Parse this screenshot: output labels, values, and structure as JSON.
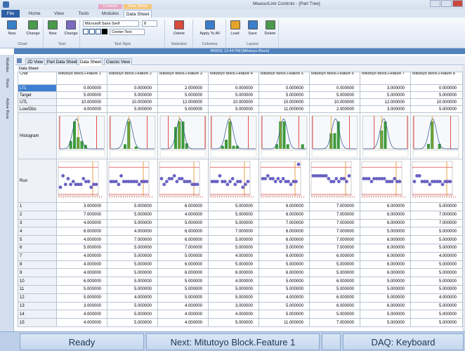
{
  "window": {
    "title": "MeasurLink Controls - [Part Tree]"
  },
  "ribbon": {
    "context_tabs": [
      "Controls",
      "Data Sheet"
    ],
    "tabs": [
      "File",
      "Home",
      "View",
      "Tools",
      "Modules",
      "Data Sheet"
    ],
    "groups": [
      {
        "label": "Chart",
        "buttons": [
          "New",
          "Change"
        ]
      },
      {
        "label": "Text",
        "buttons": [
          "New",
          "Change"
        ]
      },
      {
        "label": "Text Style",
        "font": "Microsoft Sans Serif",
        "size": "8",
        "align": "Center-Text"
      },
      {
        "label": "Selection",
        "buttons": [
          "Delete"
        ]
      },
      {
        "label": "Columns",
        "buttons": [
          "Apply To All"
        ]
      },
      {
        "label": "Layout",
        "buttons": [
          "Load",
          "Save",
          "Delete"
        ]
      }
    ]
  },
  "info_bar": "400001 12:44 PM [Mitutoyo Block]",
  "side_tabs": [
    "Modules",
    "Runs",
    "Active Runs"
  ],
  "view_tabs": [
    "2D View",
    "Part Data Sheet",
    "Data Sheet",
    "Classic View"
  ],
  "sheet_label": "Data Sheet",
  "table": {
    "header": [
      "Char",
      "Mitutoyo Block.Feature 1",
      "Mitutoyo Block.Feature 2",
      "Mitutoyo Block.Feature 3",
      "Mitutoyo Block.Feature 4",
      "Mitutoyo Block.Feature 5",
      "Mitutoyo Block.Feature 6",
      "Mitutoyo Block.Feature 7",
      "Mitutoyo Block.Feature 8"
    ],
    "spec_rows": [
      [
        "LTL",
        "0.000000",
        "0.000000",
        "2.000000",
        "0.000000",
        "0.000000",
        "0.000000",
        "3.000000",
        "0.000000"
      ],
      [
        "Target",
        "5.000000",
        "5.000000",
        "5.000000",
        "5.000000",
        "5.000000",
        "5.000000",
        "5.000000",
        "5.000000"
      ],
      [
        "UTL",
        "10.000000",
        "10.000000",
        "12.000000",
        "10.000000",
        "10.000000",
        "10.000000",
        "12.000000",
        "10.000000"
      ],
      [
        "Low/Obs",
        "4.000000",
        "5.000000",
        "5.000000",
        "5.000000",
        "11.000000",
        "2.000000",
        "3.000000",
        "5.000000"
      ]
    ],
    "chart_rows": [
      "Histogram",
      "Run"
    ],
    "rows": [
      [
        "1",
        "3.000000",
        "5.000000",
        "6.000000",
        "5.000000",
        "6.000000",
        "7.000000",
        "6.000000",
        "5.000000"
      ],
      [
        "2",
        "7.000000",
        "5.000000",
        "4.000000",
        "5.000000",
        "6.000000",
        "7.000000",
        "6.000000",
        "7.000000"
      ],
      [
        "3",
        "4.000000",
        "5.000000",
        "5.000000",
        "5.000000",
        "7.000000",
        "7.000000",
        "6.000000",
        "7.000000"
      ],
      [
        "4",
        "6.000000",
        "4.000000",
        "6.000000",
        "7.000000",
        "6.000000",
        "7.000000",
        "5.000000",
        "5.000000"
      ],
      [
        "5",
        "4.000000",
        "7.000000",
        "6.000000",
        "5.000000",
        "6.000000",
        "7.000000",
        "6.000000",
        "5.000000"
      ],
      [
        "6",
        "5.000000",
        "5.000000",
        "7.000000",
        "5.000000",
        "5.000000",
        "7.000000",
        "6.000000",
        "5.000000"
      ],
      [
        "7",
        "4.000000",
        "5.000000",
        "5.000000",
        "4.000000",
        "6.000000",
        "6.000000",
        "6.000000",
        "4.000000"
      ],
      [
        "8",
        "4.000000",
        "5.000000",
        "6.000000",
        "5.000000",
        "5.000000",
        "5.000000",
        "6.000000",
        "5.000000"
      ],
      [
        "9",
        "4.000000",
        "5.000000",
        "6.000000",
        "6.000000",
        "6.000000",
        "5.000000",
        "6.000000",
        "5.000000"
      ],
      [
        "10",
        "6.000000",
        "5.000000",
        "5.000000",
        "4.000000",
        "5.000000",
        "6.000000",
        "5.000000",
        "5.000000"
      ],
      [
        "11",
        "5.000000",
        "5.000000",
        "5.000000",
        "5.000000",
        "5.000000",
        "5.000000",
        "5.000000",
        "5.000000"
      ],
      [
        "12",
        "5.000000",
        "4.000000",
        "5.000000",
        "5.000000",
        "4.000000",
        "6.000000",
        "5.000000",
        "4.000000"
      ],
      [
        "13",
        "3.000000",
        "5.000000",
        "4.000000",
        "3.000000",
        "5.000000",
        "6.000000",
        "6.000000",
        "5.000000"
      ],
      [
        "14",
        "4.000000",
        "5.000000",
        "4.000000",
        "4.000000",
        "5.000000",
        "5.000000",
        "5.000000",
        "5.000000"
      ],
      [
        "15",
        "4.000000",
        "5.000000",
        "4.000000",
        "5.000000",
        "11.000000",
        "7.000000",
        "5.000000",
        "5.000000"
      ]
    ]
  },
  "status": [
    "Ready",
    "Next: Mitutoyo Block.Feature 1",
    "DAQ: Keyboard"
  ]
}
